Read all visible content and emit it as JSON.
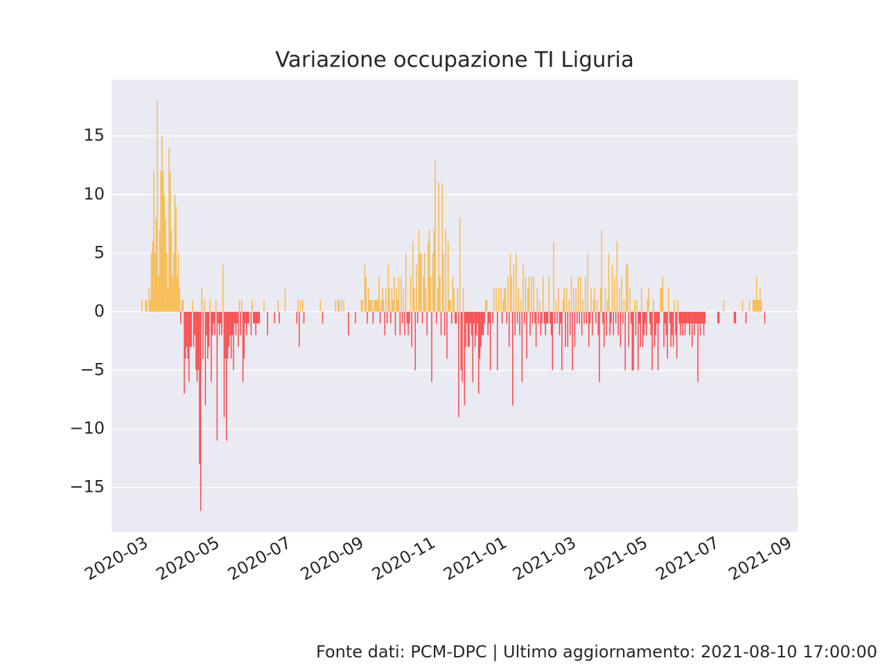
{
  "chart_data": {
    "type": "bar",
    "title": "Variazione occupazione TI Liguria",
    "footer": "Fonte dati: PCM-DPC | Ultimo aggiornamento: 2021-08-10 17:00:00",
    "positive_color": "orange",
    "negative_color": "red",
    "grid": true,
    "xlim": [
      "2020-01-31",
      "2021-09-07"
    ],
    "xticks": [
      "2020-03",
      "2020-05",
      "2020-07",
      "2020-09",
      "2020-11",
      "2021-01",
      "2021-03",
      "2021-05",
      "2021-07",
      "2021-09"
    ],
    "ylim": [
      -18.8,
      19.8
    ],
    "yticks": [
      {
        "value": -15,
        "label": "−15"
      },
      {
        "value": -10,
        "label": "−10"
      },
      {
        "value": -5,
        "label": "−5"
      },
      0,
      5,
      10,
      15
    ],
    "x": [
      "2020-02-24",
      "2020-02-25",
      "2020-02-26",
      "2020-02-27",
      "2020-02-28",
      "2020-02-29",
      "2020-03-01",
      "2020-03-02",
      "2020-03-03",
      "2020-03-04",
      "2020-03-05",
      "2020-03-06",
      "2020-03-07",
      "2020-03-08",
      "2020-03-09",
      "2020-03-10",
      "2020-03-11",
      "2020-03-12",
      "2020-03-13",
      "2020-03-14",
      "2020-03-15",
      "2020-03-16",
      "2020-03-17",
      "2020-03-18",
      "2020-03-19",
      "2020-03-20",
      "2020-03-21",
      "2020-03-22",
      "2020-03-23",
      "2020-03-24",
      "2020-03-25",
      "2020-03-26",
      "2020-03-27",
      "2020-03-28",
      "2020-03-29",
      "2020-03-30",
      "2020-03-31",
      "2020-04-01",
      "2020-04-02",
      "2020-04-03",
      "2020-04-04",
      "2020-04-05",
      "2020-04-06",
      "2020-04-07",
      "2020-04-08",
      "2020-04-09",
      "2020-04-10",
      "2020-04-11",
      "2020-04-12",
      "2020-04-13",
      "2020-04-14",
      "2020-04-15",
      "2020-04-16",
      "2020-04-17",
      "2020-04-18",
      "2020-04-19",
      "2020-04-20",
      "2020-04-21",
      "2020-04-22",
      "2020-04-23",
      "2020-04-24",
      "2020-04-25",
      "2020-04-26",
      "2020-04-27",
      "2020-04-28",
      "2020-04-29",
      "2020-04-30",
      "2020-05-01",
      "2020-05-02",
      "2020-05-03",
      "2020-05-04",
      "2020-05-05",
      "2020-05-06",
      "2020-05-07",
      "2020-05-08",
      "2020-05-09",
      "2020-05-10",
      "2020-05-11",
      "2020-05-12",
      "2020-05-13",
      "2020-05-14",
      "2020-05-15",
      "2020-05-16",
      "2020-05-17",
      "2020-05-18",
      "2020-05-19",
      "2020-05-20",
      "2020-05-21",
      "2020-05-22",
      "2020-05-23",
      "2020-05-24",
      "2020-05-25",
      "2020-05-26",
      "2020-05-27",
      "2020-05-28",
      "2020-05-29",
      "2020-05-30",
      "2020-05-31",
      "2020-06-01",
      "2020-06-02",
      "2020-06-03",
      "2020-06-04",
      "2020-06-05",
      "2020-06-06",
      "2020-06-07",
      "2020-06-08",
      "2020-06-09",
      "2020-06-10",
      "2020-06-11",
      "2020-06-12",
      "2020-06-13",
      "2020-06-14",
      "2020-06-15",
      "2020-06-16",
      "2020-06-17",
      "2020-06-18",
      "2020-06-19",
      "2020-06-20",
      "2020-06-21",
      "2020-06-22",
      "2020-06-23",
      "2020-06-24",
      "2020-06-25",
      "2020-06-26",
      "2020-06-27",
      "2020-06-28",
      "2020-06-29",
      "2020-06-30",
      "2020-07-01",
      "2020-07-02",
      "2020-07-03",
      "2020-07-04",
      "2020-07-05",
      "2020-07-06",
      "2020-07-07",
      "2020-07-08",
      "2020-07-09",
      "2020-07-10",
      "2020-07-11",
      "2020-07-12",
      "2020-07-13",
      "2020-07-14",
      "2020-07-15",
      "2020-07-16",
      "2020-07-17",
      "2020-07-18",
      "2020-07-19",
      "2020-07-20",
      "2020-07-21",
      "2020-07-22",
      "2020-07-23",
      "2020-07-24",
      "2020-07-25",
      "2020-07-26",
      "2020-07-27",
      "2020-07-28",
      "2020-07-29",
      "2020-07-30",
      "2020-07-31",
      "2020-08-01",
      "2020-08-02",
      "2020-08-03",
      "2020-08-04",
      "2020-08-05",
      "2020-08-06",
      "2020-08-07",
      "2020-08-08",
      "2020-08-09",
      "2020-08-10",
      "2020-08-11",
      "2020-08-12",
      "2020-08-13",
      "2020-08-14",
      "2020-08-15",
      "2020-08-16",
      "2020-08-17",
      "2020-08-18",
      "2020-08-19",
      "2020-08-20",
      "2020-08-21",
      "2020-08-22",
      "2020-08-23",
      "2020-08-24",
      "2020-08-25",
      "2020-08-26",
      "2020-08-27",
      "2020-08-28",
      "2020-08-29",
      "2020-08-30",
      "2020-08-31",
      "2020-09-01",
      "2020-09-02",
      "2020-09-03",
      "2020-09-04",
      "2020-09-05",
      "2020-09-06",
      "2020-09-07",
      "2020-09-08",
      "2020-09-09",
      "2020-09-10",
      "2020-09-11",
      "2020-09-12",
      "2020-09-13",
      "2020-09-14",
      "2020-09-15",
      "2020-09-16",
      "2020-09-17",
      "2020-09-18",
      "2020-09-19",
      "2020-09-20",
      "2020-09-21",
      "2020-09-22",
      "2020-09-23",
      "2020-09-24",
      "2020-09-25",
      "2020-09-26",
      "2020-09-27",
      "2020-09-28",
      "2020-09-29",
      "2020-09-30",
      "2020-10-01",
      "2020-10-02",
      "2020-10-03",
      "2020-10-04",
      "2020-10-05",
      "2020-10-06",
      "2020-10-07",
      "2020-10-08",
      "2020-10-09",
      "2020-10-10",
      "2020-10-11",
      "2020-10-12",
      "2020-10-13",
      "2020-10-14",
      "2020-10-15",
      "2020-10-16",
      "2020-10-17",
      "2020-10-18",
      "2020-10-19",
      "2020-10-20",
      "2020-10-21",
      "2020-10-22",
      "2020-10-23",
      "2020-10-24",
      "2020-10-25",
      "2020-10-26",
      "2020-10-27",
      "2020-10-28",
      "2020-10-29",
      "2020-10-30",
      "2020-10-31",
      "2020-11-01",
      "2020-11-02",
      "2020-11-03",
      "2020-11-04",
      "2020-11-05",
      "2020-11-06",
      "2020-11-07",
      "2020-11-08",
      "2020-11-09",
      "2020-11-10",
      "2020-11-11",
      "2020-11-12",
      "2020-11-13",
      "2020-11-14",
      "2020-11-15",
      "2020-11-16",
      "2020-11-17",
      "2020-11-18",
      "2020-11-19",
      "2020-11-20",
      "2020-11-21",
      "2020-11-22",
      "2020-11-23",
      "2020-11-24",
      "2020-11-25",
      "2020-11-26",
      "2020-11-27",
      "2020-11-28",
      "2020-11-29",
      "2020-11-30",
      "2020-12-01",
      "2020-12-02",
      "2020-12-03",
      "2020-12-04",
      "2020-12-05",
      "2020-12-06",
      "2020-12-07",
      "2020-12-08",
      "2020-12-09",
      "2020-12-10",
      "2020-12-11",
      "2020-12-12",
      "2020-12-13",
      "2020-12-14",
      "2020-12-15",
      "2020-12-16",
      "2020-12-17",
      "2020-12-18",
      "2020-12-19",
      "2020-12-20",
      "2020-12-21",
      "2020-12-22",
      "2020-12-23",
      "2020-12-24",
      "2020-12-25",
      "2020-12-26",
      "2020-12-27",
      "2020-12-28",
      "2020-12-29",
      "2020-12-30",
      "2020-12-31",
      "2021-01-01",
      "2021-01-02",
      "2021-01-03",
      "2021-01-04",
      "2021-01-05",
      "2021-01-06",
      "2021-01-07",
      "2021-01-08",
      "2021-01-09",
      "2021-01-10",
      "2021-01-11",
      "2021-01-12",
      "2021-01-13",
      "2021-01-14",
      "2021-01-15",
      "2021-01-16",
      "2021-01-17",
      "2021-01-18",
      "2021-01-19",
      "2021-01-20",
      "2021-01-21",
      "2021-01-22",
      "2021-01-23",
      "2021-01-24",
      "2021-01-25",
      "2021-01-26",
      "2021-01-27",
      "2021-01-28",
      "2021-01-29",
      "2021-01-30",
      "2021-01-31",
      "2021-02-01",
      "2021-02-02",
      "2021-02-03",
      "2021-02-04",
      "2021-02-05",
      "2021-02-06",
      "2021-02-07",
      "2021-02-08",
      "2021-02-09",
      "2021-02-10",
      "2021-02-11",
      "2021-02-12",
      "2021-02-13",
      "2021-02-14",
      "2021-02-15",
      "2021-02-16",
      "2021-02-17",
      "2021-02-18",
      "2021-02-19",
      "2021-02-20",
      "2021-02-21",
      "2021-02-22",
      "2021-02-23",
      "2021-02-24",
      "2021-02-25",
      "2021-02-26",
      "2021-02-27",
      "2021-02-28",
      "2021-03-01",
      "2021-03-02",
      "2021-03-03",
      "2021-03-04",
      "2021-03-05",
      "2021-03-06",
      "2021-03-07",
      "2021-03-08",
      "2021-03-09",
      "2021-03-10",
      "2021-03-11",
      "2021-03-12",
      "2021-03-13",
      "2021-03-14",
      "2021-03-15",
      "2021-03-16",
      "2021-03-17",
      "2021-03-18",
      "2021-03-19",
      "2021-03-20",
      "2021-03-21",
      "2021-03-22",
      "2021-03-23",
      "2021-03-24",
      "2021-03-25",
      "2021-03-26",
      "2021-03-27",
      "2021-03-28",
      "2021-03-29",
      "2021-03-30",
      "2021-03-31",
      "2021-04-01",
      "2021-04-02",
      "2021-04-03",
      "2021-04-04",
      "2021-04-05",
      "2021-04-06",
      "2021-04-07",
      "2021-04-08",
      "2021-04-09",
      "2021-04-10",
      "2021-04-11",
      "2021-04-12",
      "2021-04-13",
      "2021-04-14",
      "2021-04-15",
      "2021-04-16",
      "2021-04-17",
      "2021-04-18",
      "2021-04-19",
      "2021-04-20",
      "2021-04-21",
      "2021-04-22",
      "2021-04-23",
      "2021-04-24",
      "2021-04-25",
      "2021-04-26",
      "2021-04-27",
      "2021-04-28",
      "2021-04-29",
      "2021-04-30",
      "2021-05-01",
      "2021-05-02",
      "2021-05-03",
      "2021-05-04",
      "2021-05-05",
      "2021-05-06",
      "2021-05-07",
      "2021-05-08",
      "2021-05-09",
      "2021-05-10",
      "2021-05-11",
      "2021-05-12",
      "2021-05-13",
      "2021-05-14",
      "2021-05-15",
      "2021-05-16",
      "2021-05-17",
      "2021-05-18",
      "2021-05-19",
      "2021-05-20",
      "2021-05-21",
      "2021-05-22",
      "2021-05-23",
      "2021-05-24",
      "2021-05-25",
      "2021-05-26",
      "2021-05-27",
      "2021-05-28",
      "2021-05-29",
      "2021-05-30",
      "2021-05-31",
      "2021-06-01",
      "2021-06-02",
      "2021-06-03",
      "2021-06-04",
      "2021-06-05",
      "2021-06-06",
      "2021-06-07",
      "2021-06-08",
      "2021-06-09",
      "2021-06-10",
      "2021-06-11",
      "2021-06-12",
      "2021-06-13",
      "2021-06-14",
      "2021-06-15",
      "2021-06-16",
      "2021-06-17",
      "2021-06-18",
      "2021-06-19",
      "2021-06-20",
      "2021-06-21",
      "2021-06-22",
      "2021-06-23",
      "2021-06-24",
      "2021-06-25",
      "2021-06-26",
      "2021-06-27",
      "2021-06-28",
      "2021-06-29",
      "2021-06-30",
      "2021-07-01",
      "2021-07-02",
      "2021-07-03",
      "2021-07-04",
      "2021-07-05",
      "2021-07-06",
      "2021-07-07",
      "2021-07-08",
      "2021-07-09",
      "2021-07-10",
      "2021-07-11",
      "2021-07-12",
      "2021-07-13",
      "2021-07-14",
      "2021-07-15",
      "2021-07-16",
      "2021-07-17",
      "2021-07-18",
      "2021-07-19",
      "2021-07-20",
      "2021-07-21",
      "2021-07-22",
      "2021-07-23",
      "2021-07-24",
      "2021-07-25",
      "2021-07-26",
      "2021-07-27",
      "2021-07-28",
      "2021-07-29",
      "2021-07-30",
      "2021-07-31",
      "2021-08-01",
      "2021-08-02",
      "2021-08-03",
      "2021-08-04",
      "2021-08-05",
      "2021-08-06",
      "2021-08-07",
      "2021-08-08",
      "2021-08-09",
      "2021-08-10"
    ],
    "values": [
      0,
      0,
      1,
      0,
      0,
      1,
      1,
      0,
      2,
      1,
      5,
      6,
      12,
      5,
      8,
      18,
      3,
      7,
      12,
      15,
      12,
      10,
      8,
      5,
      2,
      14,
      12,
      7,
      3,
      5,
      10,
      9,
      3,
      5,
      2,
      -1,
      1,
      1,
      -7,
      -4,
      -3,
      -4,
      -6,
      -3,
      -3,
      1,
      -3,
      -2,
      -5,
      -6,
      -5,
      -13,
      -17,
      2,
      -4,
      1,
      -8,
      -2,
      -4,
      -3,
      1,
      -6,
      -2,
      -1,
      -2,
      1,
      -11,
      -1,
      -2,
      -1,
      -2,
      4,
      -9,
      -4,
      -11,
      -4,
      -3,
      -2,
      -4,
      -2,
      -5,
      -1,
      -2,
      -1,
      -3,
      1,
      -2,
      1,
      -6,
      -4,
      -1,
      -2,
      -1,
      -1,
      0,
      -2,
      1,
      -1,
      -1,
      -2,
      -1,
      -1,
      -1,
      0,
      0,
      0,
      1,
      0,
      0,
      -2,
      0,
      0,
      0,
      0,
      0,
      -1,
      0,
      0,
      1,
      -1,
      0,
      0,
      0,
      0,
      2,
      0,
      0,
      0,
      0,
      0,
      0,
      0,
      0,
      0,
      -1,
      1,
      -3,
      1,
      0,
      1,
      -1,
      0,
      0,
      0,
      0,
      0,
      0,
      0,
      0,
      0,
      0,
      0,
      0,
      0,
      1,
      0,
      -1,
      0,
      0,
      0,
      0,
      0,
      0,
      0,
      0,
      0,
      0,
      1,
      0,
      1,
      1,
      0,
      1,
      0,
      1,
      0,
      0,
      0,
      -2,
      0,
      0,
      0,
      0,
      0,
      -1,
      0,
      0,
      0,
      0,
      1,
      1,
      0,
      4,
      3,
      -1,
      2,
      1,
      1,
      1,
      -1,
      1,
      1,
      1,
      1,
      3,
      -1,
      1,
      2,
      1,
      -2,
      2,
      -1,
      4,
      2,
      -1,
      2,
      1,
      3,
      -2,
      2,
      1,
      3,
      -2,
      3,
      -1,
      2,
      -2,
      5,
      -1,
      -2,
      -1,
      3,
      -3,
      6,
      2,
      -5,
      4,
      -1,
      7,
      5,
      5,
      -1,
      3,
      5,
      2,
      -2,
      6,
      7,
      3,
      -6,
      5,
      7,
      13,
      -1,
      2,
      11,
      3,
      -2,
      11,
      5,
      -2,
      7,
      -4,
      6,
      1,
      1,
      -1,
      3,
      2,
      -1,
      -1,
      2,
      -9,
      8,
      -5,
      -6,
      2,
      -8,
      -3,
      -1,
      -3,
      -3,
      -1,
      -2,
      -6,
      -1,
      -3,
      -2,
      -1,
      -7,
      -4,
      -3,
      -2,
      -2,
      -1,
      1,
      1,
      -2,
      -1,
      -5,
      0,
      -1,
      2,
      0,
      2,
      -5,
      2,
      0,
      2,
      -1,
      1,
      2,
      2,
      -1,
      3,
      -3,
      5,
      3,
      -8,
      4,
      -2,
      5,
      -1,
      2,
      -2,
      1,
      -6,
      4,
      -1,
      3,
      -4,
      2,
      3,
      -2,
      3,
      -1,
      3,
      -1,
      -3,
      2,
      -1,
      1,
      -2,
      -1,
      3,
      -1,
      -2,
      -1,
      -1,
      3,
      -1,
      -2,
      -5,
      6,
      -1,
      1,
      -1,
      2,
      -2,
      -1,
      -5,
      1,
      2,
      -3,
      2,
      -3,
      1,
      -2,
      3,
      -5,
      2,
      -3,
      2,
      -1,
      3,
      -1,
      3,
      -2,
      1,
      -1,
      3,
      -1,
      5,
      -3,
      -1,
      2,
      -2,
      1,
      2,
      -1,
      1,
      -2,
      -6,
      2,
      7,
      -1,
      -3,
      2,
      -2,
      1,
      5,
      -2,
      -1,
      4,
      -2,
      3,
      -1,
      6,
      -2,
      2,
      -3,
      3,
      -1,
      1,
      -5,
      4,
      4,
      -3,
      2,
      -1,
      -5,
      -5,
      1,
      -2,
      1,
      -5,
      -1,
      -3,
      2,
      -3,
      -2,
      -1,
      -2,
      1,
      2,
      -1,
      -2,
      -5,
      1,
      -3,
      -2,
      -1,
      -5,
      -1,
      2,
      2,
      3,
      -3,
      -1,
      -2,
      -4,
      2,
      -1,
      -3,
      -2,
      -3,
      1,
      -2,
      -4,
      1,
      -1,
      -2,
      -1,
      -2,
      -1,
      -2,
      -1,
      -1,
      -1,
      -2,
      -1,
      -3,
      -1,
      -2,
      -1,
      -1,
      -6,
      -1,
      -2,
      -1,
      -1,
      -2,
      -1,
      0,
      0,
      0,
      0,
      0,
      0,
      0,
      0,
      0,
      0,
      -1,
      -1,
      0,
      0,
      0,
      1,
      0,
      0,
      0,
      0,
      0,
      0,
      0,
      0,
      -1,
      -1,
      0,
      0,
      0,
      0,
      0,
      1,
      0,
      0,
      -1,
      0,
      0,
      1,
      0,
      0,
      1,
      1,
      1,
      3,
      1,
      1,
      2,
      1,
      0,
      0,
      -1
    ]
  }
}
